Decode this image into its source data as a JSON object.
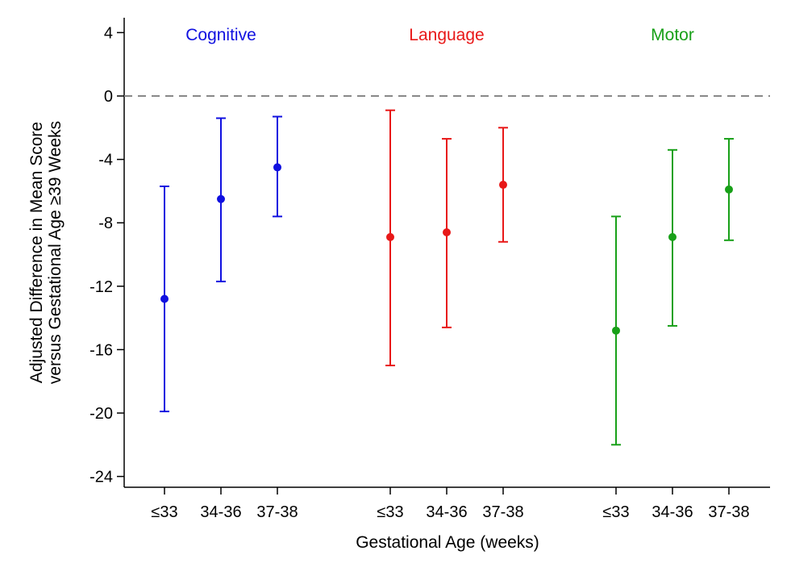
{
  "chart_data": {
    "type": "scatter",
    "subtype": "point-with-error-bars",
    "xlabel": "Gestational Age (weeks)",
    "ylabel_lines": [
      "Adjusted Difference in Mean Score",
      "versus Gestational Age ≥39 Weeks"
    ],
    "ylim": [
      -25,
      5
    ],
    "yticks": [
      4,
      0,
      -4,
      -8,
      -12,
      -16,
      -20,
      -24
    ],
    "ytick_labels": [
      "4",
      "0",
      "-4",
      "-8",
      "-12",
      "-16",
      "-20",
      "-24"
    ],
    "reference_line": {
      "y": 0,
      "style": "dashed",
      "color": "#888888"
    },
    "grid": false,
    "categories": [
      "≤33",
      "34-36",
      "37-38"
    ],
    "groups": [
      {
        "name": "Cognitive",
        "color": "#1010e0",
        "points": [
          {
            "x": "≤33",
            "estimate": -12.8,
            "lower": -19.9,
            "upper": -5.7
          },
          {
            "x": "34-36",
            "estimate": -6.5,
            "lower": -11.7,
            "upper": -1.4
          },
          {
            "x": "37-38",
            "estimate": -4.5,
            "lower": -7.6,
            "upper": -1.3
          }
        ]
      },
      {
        "name": "Language",
        "color": "#e81818",
        "points": [
          {
            "x": "≤33",
            "estimate": -8.9,
            "lower": -17.0,
            "upper": -0.9
          },
          {
            "x": "34-36",
            "estimate": -8.6,
            "lower": -14.6,
            "upper": -2.7
          },
          {
            "x": "37-38",
            "estimate": -5.6,
            "lower": -9.2,
            "upper": -2.0
          }
        ]
      },
      {
        "name": "Motor",
        "color": "#18a018",
        "points": [
          {
            "x": "≤33",
            "estimate": -14.8,
            "lower": -22.0,
            "upper": -7.6
          },
          {
            "x": "34-36",
            "estimate": -8.9,
            "lower": -14.5,
            "upper": -3.4
          },
          {
            "x": "37-38",
            "estimate": -5.9,
            "lower": -9.1,
            "upper": -2.7
          }
        ]
      }
    ]
  }
}
